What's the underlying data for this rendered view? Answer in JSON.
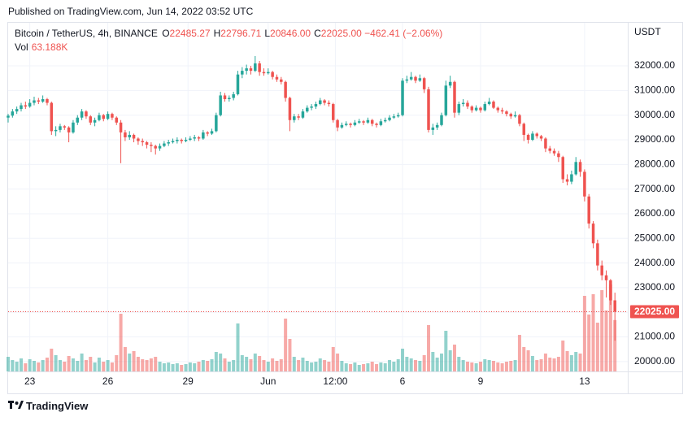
{
  "header": {
    "published": "Published on TradingView.com, Jun 14, 2022 03:52 UTC"
  },
  "footer": {
    "brand": "TradingView"
  },
  "chart_data": {
    "type": "candlestick",
    "symbol": "Bitcoin / TetherUS, 4h, BINANCE",
    "legend_values": [
      [
        "O",
        "22485.27"
      ],
      [
        "H",
        "22796.71"
      ],
      [
        "L",
        "20846.00"
      ],
      [
        "C",
        "22025.00"
      ]
    ],
    "change": "−462.41 (−2.06%)",
    "volume_name": "Vol",
    "volume_label": "63.188K",
    "axis_unit": "USDT",
    "up_color": "#26a69a",
    "down_color": "#ef5350",
    "grid": true,
    "ylim": [
      19600,
      33750
    ],
    "vlim": [
      0,
      150
    ],
    "yticks": [
      {
        "value": 20000,
        "label": "20000.00"
      },
      {
        "value": 21000,
        "label": "21000.00"
      },
      {
        "value": 22000,
        "label": "22000.00"
      },
      {
        "value": 23000,
        "label": "23000.00"
      },
      {
        "value": 24000,
        "label": "24000.00"
      },
      {
        "value": 25000,
        "label": "25000.00"
      },
      {
        "value": 26000,
        "label": "26000.00"
      },
      {
        "value": 27000,
        "label": "27000.00"
      },
      {
        "value": 28000,
        "label": "28000.00"
      },
      {
        "value": 29000,
        "label": "29000.00"
      },
      {
        "value": 30000,
        "label": "30000.00"
      },
      {
        "value": 31000,
        "label": "31000.00"
      },
      {
        "value": 32000,
        "label": "32000.00"
      }
    ],
    "xticks": [
      {
        "value": 5,
        "label": "23"
      },
      {
        "value": 23,
        "label": "26"
      },
      {
        "value": 41.5,
        "label": "29"
      },
      {
        "value": 60,
        "label": "Jun"
      },
      {
        "value": 75.5,
        "label": "12:00"
      },
      {
        "value": 91,
        "label": "6"
      },
      {
        "value": 109,
        "label": "9"
      },
      {
        "value": 133,
        "label": "13"
      }
    ],
    "last_price": {
      "value": 22025,
      "label": "22025.00"
    },
    "candles": [
      [
        29900,
        30050,
        29700,
        29980,
        18
      ],
      [
        29980,
        30250,
        29900,
        30150,
        14
      ],
      [
        30150,
        30350,
        30050,
        30250,
        12
      ],
      [
        30250,
        30500,
        30150,
        30400,
        16
      ],
      [
        30400,
        30550,
        30250,
        30350,
        10
      ],
      [
        30350,
        30650,
        30300,
        30500,
        15
      ],
      [
        30500,
        30750,
        30400,
        30600,
        13
      ],
      [
        30600,
        30700,
        30450,
        30550,
        11
      ],
      [
        30550,
        30800,
        30500,
        30650,
        14
      ],
      [
        30650,
        30700,
        30400,
        30500,
        17
      ],
      [
        30500,
        30550,
        29200,
        29350,
        28
      ],
      [
        29350,
        29550,
        29150,
        29400,
        20
      ],
      [
        29400,
        29650,
        29300,
        29550,
        14
      ],
      [
        29550,
        29600,
        29400,
        29500,
        12
      ],
      [
        29500,
        29550,
        28900,
        29300,
        19
      ],
      [
        29300,
        29800,
        29250,
        29700,
        16
      ],
      [
        29700,
        30000,
        29600,
        29900,
        13
      ],
      [
        29900,
        30250,
        29800,
        30150,
        22
      ],
      [
        30150,
        30200,
        29850,
        29950,
        14
      ],
      [
        29950,
        30000,
        29600,
        29700,
        18
      ],
      [
        29700,
        29900,
        29550,
        29800,
        11
      ],
      [
        29800,
        30100,
        29750,
        30000,
        17
      ],
      [
        30000,
        30050,
        29750,
        29850,
        12
      ],
      [
        29850,
        30150,
        29800,
        30050,
        14
      ],
      [
        30050,
        30100,
        29800,
        29900,
        11
      ],
      [
        29900,
        29950,
        29600,
        29700,
        20
      ],
      [
        29700,
        29800,
        28050,
        29300,
        71
      ],
      [
        29300,
        29400,
        28950,
        29100,
        30
      ],
      [
        29100,
        29350,
        29000,
        29200,
        22
      ],
      [
        29200,
        29250,
        28900,
        29050,
        25
      ],
      [
        29050,
        29100,
        28800,
        28950,
        18
      ],
      [
        28950,
        29050,
        28750,
        28900,
        15
      ],
      [
        28900,
        28950,
        28650,
        28800,
        14
      ],
      [
        28800,
        28900,
        28500,
        28750,
        16
      ],
      [
        28750,
        28800,
        28400,
        28650,
        18
      ],
      [
        28650,
        28850,
        28550,
        28750,
        12
      ],
      [
        28750,
        28950,
        28700,
        28850,
        10
      ],
      [
        28850,
        29000,
        28750,
        28900,
        11
      ],
      [
        28900,
        29050,
        28850,
        28950,
        9
      ],
      [
        28950,
        29100,
        28850,
        29000,
        10
      ],
      [
        29000,
        29050,
        28850,
        28950,
        8
      ],
      [
        28950,
        29100,
        28900,
        29000,
        9
      ],
      [
        29000,
        29150,
        28950,
        29050,
        11
      ],
      [
        29050,
        29200,
        28950,
        29100,
        10
      ],
      [
        29100,
        29150,
        28950,
        29050,
        12
      ],
      [
        29050,
        29400,
        29000,
        29300,
        14
      ],
      [
        29300,
        29350,
        29150,
        29250,
        13
      ],
      [
        29250,
        29450,
        29200,
        29350,
        15
      ],
      [
        29350,
        30100,
        29300,
        30000,
        24
      ],
      [
        30000,
        30950,
        29950,
        30800,
        22
      ],
      [
        30800,
        30900,
        30550,
        30650,
        16
      ],
      [
        30650,
        30800,
        30550,
        30700,
        12
      ],
      [
        30700,
        30950,
        30600,
        30850,
        14
      ],
      [
        30850,
        31800,
        30800,
        31650,
        59
      ],
      [
        31650,
        31950,
        31500,
        31800,
        20
      ],
      [
        31800,
        32050,
        31650,
        31900,
        18
      ],
      [
        31900,
        32000,
        31650,
        31800,
        15
      ],
      [
        31800,
        32400,
        31750,
        32100,
        22
      ],
      [
        32100,
        32200,
        31600,
        31750,
        19
      ],
      [
        31750,
        31900,
        31600,
        31700,
        14
      ],
      [
        31700,
        31900,
        31650,
        31750,
        12
      ],
      [
        31750,
        31800,
        31450,
        31550,
        16
      ],
      [
        31550,
        31650,
        31350,
        31450,
        13
      ],
      [
        31450,
        31550,
        31250,
        31350,
        15
      ],
      [
        31350,
        31400,
        30550,
        30700,
        65
      ],
      [
        30700,
        30750,
        29350,
        29800,
        40
      ],
      [
        29800,
        30050,
        29700,
        29950,
        18
      ],
      [
        29950,
        30050,
        29800,
        29900,
        14
      ],
      [
        29900,
        30250,
        29850,
        30150,
        17
      ],
      [
        30150,
        30400,
        30100,
        30300,
        13
      ],
      [
        30300,
        30450,
        30200,
        30350,
        11
      ],
      [
        30350,
        30550,
        30250,
        30450,
        12
      ],
      [
        30450,
        30700,
        30400,
        30600,
        16
      ],
      [
        30600,
        30650,
        30400,
        30500,
        14
      ],
      [
        30500,
        30600,
        30350,
        30450,
        12
      ],
      [
        30450,
        30500,
        29700,
        29800,
        30
      ],
      [
        29800,
        29850,
        29350,
        29500,
        22
      ],
      [
        29500,
        29700,
        29450,
        29600,
        13
      ],
      [
        29600,
        29750,
        29550,
        29650,
        10
      ],
      [
        29650,
        29700,
        29500,
        29600,
        9
      ],
      [
        29600,
        29800,
        29550,
        29700,
        11
      ],
      [
        29700,
        29850,
        29650,
        29750,
        8
      ],
      [
        29750,
        29800,
        29600,
        29700,
        9
      ],
      [
        29700,
        29900,
        29650,
        29800,
        10
      ],
      [
        29800,
        29850,
        29550,
        29650,
        12
      ],
      [
        29650,
        29700,
        29500,
        29600,
        9
      ],
      [
        29600,
        29850,
        29550,
        29750,
        11
      ],
      [
        29750,
        29900,
        29700,
        29800,
        10
      ],
      [
        29800,
        30000,
        29750,
        29900,
        14
      ],
      [
        29900,
        30050,
        29850,
        29950,
        12
      ],
      [
        29950,
        30100,
        29900,
        30000,
        15
      ],
      [
        30000,
        31500,
        29950,
        31400,
        28
      ],
      [
        31400,
        31600,
        31300,
        31450,
        18
      ],
      [
        31450,
        31750,
        31400,
        31550,
        16
      ],
      [
        31550,
        31600,
        31300,
        31400,
        14
      ],
      [
        31400,
        31650,
        31350,
        31500,
        13
      ],
      [
        31500,
        31550,
        30900,
        31050,
        20
      ],
      [
        31050,
        31150,
        29300,
        29400,
        57
      ],
      [
        29400,
        29650,
        29200,
        29500,
        24
      ],
      [
        29500,
        29700,
        29400,
        29600,
        17
      ],
      [
        29600,
        30100,
        29550,
        30000,
        22
      ],
      [
        30000,
        31400,
        29950,
        31200,
        50
      ],
      [
        31200,
        31600,
        31100,
        31350,
        26
      ],
      [
        31350,
        31400,
        29900,
        30100,
        33
      ],
      [
        30100,
        30550,
        30000,
        30450,
        18
      ],
      [
        30450,
        30650,
        30350,
        30500,
        14
      ],
      [
        30500,
        30600,
        30250,
        30350,
        12
      ],
      [
        30350,
        30400,
        30100,
        30200,
        11
      ],
      [
        30200,
        30400,
        30150,
        30300,
        10
      ],
      [
        30300,
        30350,
        30100,
        30200,
        12
      ],
      [
        30200,
        30550,
        30150,
        30450,
        15
      ],
      [
        30450,
        30700,
        30400,
        30550,
        14
      ],
      [
        30550,
        30600,
        30250,
        30300,
        13
      ],
      [
        30300,
        30350,
        30100,
        30200,
        11
      ],
      [
        30200,
        30300,
        30050,
        30150,
        10
      ],
      [
        30150,
        30200,
        29950,
        30050,
        12
      ],
      [
        30050,
        30100,
        29850,
        29950,
        13
      ],
      [
        29950,
        30150,
        29900,
        30000,
        14
      ],
      [
        30000,
        30050,
        29550,
        29650,
        45
      ],
      [
        29650,
        29700,
        28950,
        29200,
        30
      ],
      [
        29200,
        29250,
        28850,
        29000,
        26
      ],
      [
        29000,
        29350,
        28950,
        29250,
        19
      ],
      [
        29250,
        29300,
        29050,
        29150,
        14
      ],
      [
        29150,
        29200,
        28950,
        29050,
        15
      ],
      [
        29050,
        29100,
        28500,
        28650,
        22
      ],
      [
        28650,
        28750,
        28450,
        28550,
        17
      ],
      [
        28550,
        28650,
        28350,
        28450,
        16
      ],
      [
        28450,
        28550,
        28100,
        28300,
        18
      ],
      [
        28300,
        28350,
        27250,
        27400,
        38
      ],
      [
        27400,
        27600,
        27150,
        27300,
        25
      ],
      [
        27300,
        27750,
        27200,
        27600,
        20
      ],
      [
        27600,
        28300,
        27550,
        28100,
        24
      ],
      [
        28100,
        28200,
        27500,
        27700,
        22
      ],
      [
        27700,
        27800,
        26500,
        26700,
        93
      ],
      [
        26700,
        26800,
        25400,
        25600,
        70
      ],
      [
        25600,
        25700,
        24600,
        24800,
        95
      ],
      [
        24800,
        24950,
        23700,
        23900,
        60
      ],
      [
        23900,
        24100,
        23300,
        23500,
        100
      ],
      [
        23500,
        23700,
        22600,
        23300,
        75
      ],
      [
        23300,
        23350,
        22300,
        22485.27,
        107
      ],
      [
        22485.27,
        22796.71,
        20846.0,
        22025.0,
        63.188
      ]
    ]
  }
}
